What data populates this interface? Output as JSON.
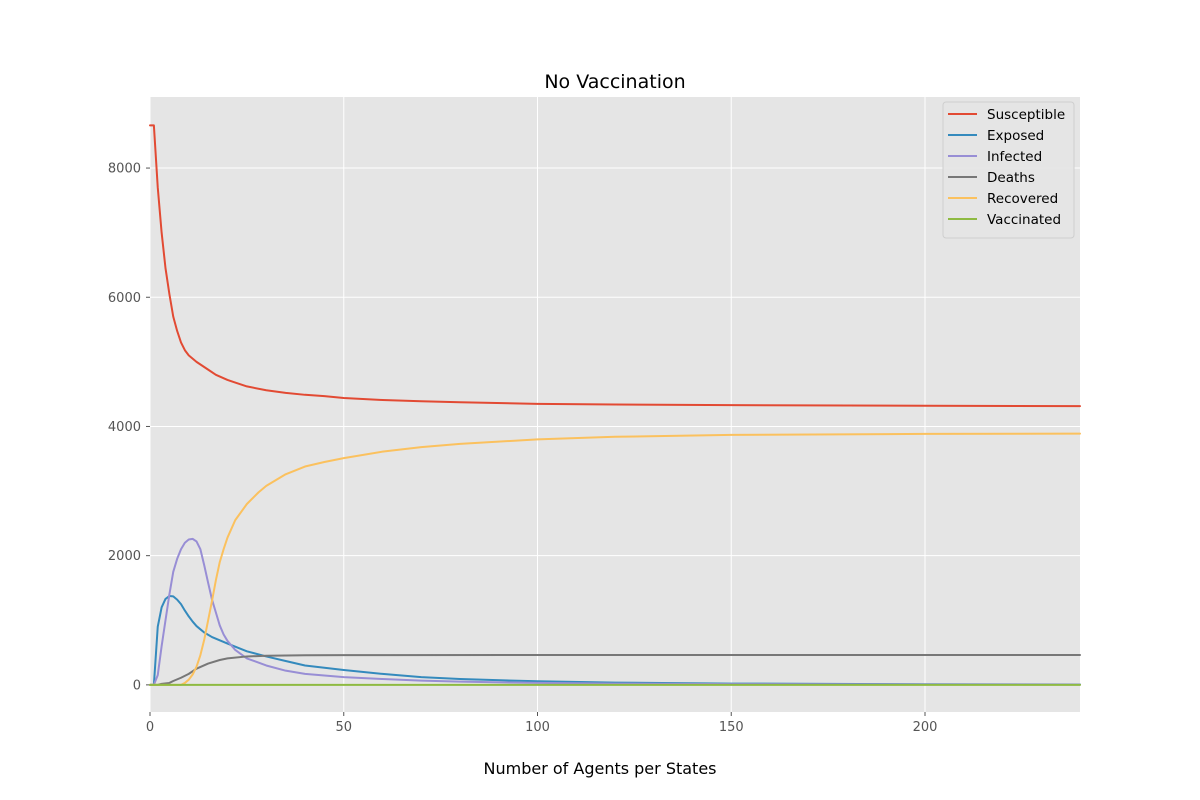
{
  "chart_data": {
    "type": "line",
    "title": "No Vaccination",
    "xlabel": "Number of Agents per States",
    "ylabel": "",
    "xlim": [
      0,
      240
    ],
    "ylim": [
      -420,
      9100
    ],
    "x_ticks": [
      0,
      50,
      100,
      150,
      200
    ],
    "y_ticks": [
      0,
      2000,
      4000,
      6000,
      8000
    ],
    "grid": true,
    "legend_position": "top-right",
    "background": "#e5e5e5",
    "series": [
      {
        "name": "Susceptible",
        "color": "#e24a33",
        "points": [
          [
            0,
            8660
          ],
          [
            1,
            8660
          ],
          [
            2,
            7700
          ],
          [
            3,
            7000
          ],
          [
            4,
            6450
          ],
          [
            5,
            6050
          ],
          [
            6,
            5700
          ],
          [
            7,
            5480
          ],
          [
            8,
            5300
          ],
          [
            9,
            5180
          ],
          [
            10,
            5100
          ],
          [
            12,
            5000
          ],
          [
            15,
            4880
          ],
          [
            17,
            4800
          ],
          [
            20,
            4720
          ],
          [
            22,
            4680
          ],
          [
            25,
            4620
          ],
          [
            30,
            4560
          ],
          [
            35,
            4520
          ],
          [
            40,
            4490
          ],
          [
            45,
            4470
          ],
          [
            50,
            4440
          ],
          [
            60,
            4410
          ],
          [
            70,
            4390
          ],
          [
            80,
            4375
          ],
          [
            100,
            4350
          ],
          [
            120,
            4340
          ],
          [
            150,
            4330
          ],
          [
            200,
            4320
          ],
          [
            240,
            4315
          ]
        ]
      },
      {
        "name": "Exposed",
        "color": "#348abd",
        "points": [
          [
            0,
            0
          ],
          [
            1,
            0
          ],
          [
            2,
            900
          ],
          [
            3,
            1200
          ],
          [
            4,
            1330
          ],
          [
            5,
            1375
          ],
          [
            6,
            1370
          ],
          [
            7,
            1320
          ],
          [
            8,
            1250
          ],
          [
            9,
            1150
          ],
          [
            10,
            1060
          ],
          [
            11,
            980
          ],
          [
            12,
            910
          ],
          [
            13,
            860
          ],
          [
            14,
            810
          ],
          [
            16,
            740
          ],
          [
            18,
            690
          ],
          [
            20,
            640
          ],
          [
            25,
            520
          ],
          [
            30,
            440
          ],
          [
            35,
            370
          ],
          [
            40,
            300
          ],
          [
            50,
            230
          ],
          [
            60,
            170
          ],
          [
            70,
            120
          ],
          [
            80,
            90
          ],
          [
            100,
            55
          ],
          [
            120,
            35
          ],
          [
            150,
            20
          ],
          [
            200,
            10
          ],
          [
            240,
            5
          ]
        ]
      },
      {
        "name": "Infected",
        "color": "#988ed5",
        "points": [
          [
            0,
            0
          ],
          [
            1,
            0
          ],
          [
            2,
            150
          ],
          [
            3,
            600
          ],
          [
            4,
            1000
          ],
          [
            5,
            1400
          ],
          [
            6,
            1750
          ],
          [
            7,
            1950
          ],
          [
            8,
            2100
          ],
          [
            9,
            2200
          ],
          [
            10,
            2250
          ],
          [
            11,
            2260
          ],
          [
            12,
            2220
          ],
          [
            13,
            2100
          ],
          [
            14,
            1850
          ],
          [
            15,
            1580
          ],
          [
            16,
            1320
          ],
          [
            17,
            1120
          ],
          [
            18,
            920
          ],
          [
            19,
            780
          ],
          [
            20,
            680
          ],
          [
            22,
            540
          ],
          [
            25,
            410
          ],
          [
            30,
            300
          ],
          [
            35,
            220
          ],
          [
            40,
            170
          ],
          [
            50,
            120
          ],
          [
            60,
            90
          ],
          [
            70,
            65
          ],
          [
            80,
            50
          ],
          [
            100,
            30
          ],
          [
            120,
            20
          ],
          [
            150,
            12
          ],
          [
            200,
            6
          ],
          [
            240,
            4
          ]
        ]
      },
      {
        "name": "Deaths",
        "color": "#777777",
        "points": [
          [
            0,
            0
          ],
          [
            2,
            0
          ],
          [
            3,
            15
          ],
          [
            5,
            30
          ],
          [
            6,
            60
          ],
          [
            8,
            110
          ],
          [
            10,
            170
          ],
          [
            12,
            250
          ],
          [
            15,
            330
          ],
          [
            18,
            385
          ],
          [
            20,
            410
          ],
          [
            25,
            440
          ],
          [
            30,
            450
          ],
          [
            40,
            458
          ],
          [
            50,
            460
          ],
          [
            100,
            462
          ],
          [
            150,
            463
          ],
          [
            200,
            463
          ],
          [
            240,
            463
          ]
        ]
      },
      {
        "name": "Recovered",
        "color": "#fbc15e",
        "points": [
          [
            0,
            0
          ],
          [
            8,
            0
          ],
          [
            9,
            30
          ],
          [
            10,
            80
          ],
          [
            11,
            160
          ],
          [
            12,
            280
          ],
          [
            13,
            460
          ],
          [
            14,
            700
          ],
          [
            15,
            1000
          ],
          [
            16,
            1300
          ],
          [
            17,
            1620
          ],
          [
            18,
            1900
          ],
          [
            19,
            2100
          ],
          [
            20,
            2280
          ],
          [
            22,
            2550
          ],
          [
            25,
            2800
          ],
          [
            28,
            2980
          ],
          [
            30,
            3080
          ],
          [
            35,
            3260
          ],
          [
            40,
            3380
          ],
          [
            45,
            3450
          ],
          [
            50,
            3510
          ],
          [
            60,
            3610
          ],
          [
            70,
            3680
          ],
          [
            80,
            3730
          ],
          [
            100,
            3800
          ],
          [
            120,
            3840
          ],
          [
            150,
            3870
          ],
          [
            200,
            3885
          ],
          [
            240,
            3890
          ]
        ]
      },
      {
        "name": "Vaccinated",
        "color": "#8eba42",
        "points": [
          [
            0,
            0
          ],
          [
            240,
            0
          ]
        ]
      }
    ]
  }
}
